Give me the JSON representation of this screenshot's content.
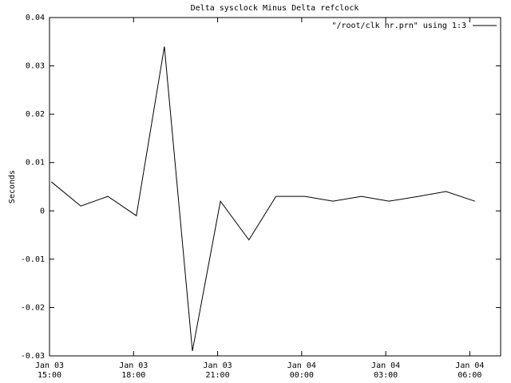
{
  "chart_data": {
    "type": "line",
    "title": "Delta sysclock Minus Delta refclock",
    "y_label": "Seconds",
    "x": [
      "Jan 03 15:04",
      "Jan 03 16:07",
      "Jan 03 17:05",
      "Jan 03 18:06",
      "Jan 03 19:06",
      "Jan 03 20:06",
      "Jan 03 21:06",
      "Jan 03 22:07",
      "Jan 03 23:05",
      "Jan 04 00:07",
      "Jan 04 01:07",
      "Jan 04 02:08",
      "Jan 04 03:07",
      "Jan 04 04:10",
      "Jan 04 05:09",
      "Jan 04 06:11"
    ],
    "series": [
      {
        "name": "\"/root/clk hr.prn\" using 1:3",
        "color": "#000000",
        "values": [
          0.006,
          0.001,
          0.003,
          -0.001,
          0.034,
          -0.029,
          0.002,
          -0.006,
          0.003,
          0.003,
          0.002,
          0.003,
          0.002,
          0.003,
          0.004,
          0.002
        ]
      }
    ],
    "xlim": [
      "Jan 03 15:00",
      "Jan 04 07:06"
    ],
    "xticks": [
      "Jan 03 15:00",
      "Jan 03 18:00",
      "Jan 03 21:00",
      "Jan 04 00:00",
      "Jan 04 03:00",
      "Jan 04 06:00"
    ],
    "ylim": [
      -0.03,
      0.04
    ],
    "yticks": [
      -0.03,
      -0.02,
      -0.01,
      0,
      0.01,
      0.02,
      0.03,
      0.04
    ],
    "legend": "top-right",
    "grid": false
  }
}
